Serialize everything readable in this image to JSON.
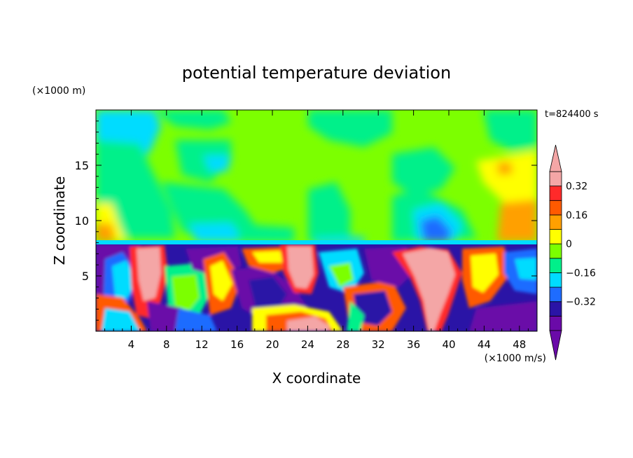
{
  "chart_data": {
    "type": "heatmap",
    "title": "potential temperature deviation",
    "xlabel": "X coordinate",
    "ylabel": "Z coordinate",
    "x_unit": "(×1000 m/s)",
    "y_unit": "(×1000 m)",
    "time_label": "t=824400 s",
    "xlim": [
      0,
      50
    ],
    "ylim": [
      0,
      20
    ],
    "x_ticks": [
      4,
      8,
      12,
      16,
      20,
      24,
      28,
      32,
      36,
      40,
      44,
      48
    ],
    "y_ticks": [
      5,
      10,
      15
    ],
    "colorbar": {
      "levels": [
        -0.48,
        -0.4,
        -0.32,
        -0.24,
        -0.16,
        -0.08,
        0,
        0.08,
        0.16,
        0.24,
        0.32,
        0.4
      ],
      "labeled_ticks": [
        -0.32,
        -0.16,
        0,
        0.16,
        0.32
      ],
      "tick_labels": [
        "−0.32",
        "−0.16",
        "0",
        "0.16",
        "0.32"
      ],
      "colors": [
        "#6a0aa8",
        "#2a14a6",
        "#1e6cff",
        "#00dcff",
        "#00f08a",
        "#7cff00",
        "#ffff00",
        "#ffa000",
        "#ff5a00",
        "#ff2a2a",
        "#f4a6a6"
      ],
      "under_color": "#6a0aa8",
      "over_color": "#f4a6a6"
    },
    "boundary_layer_top_z": 7.8
  }
}
